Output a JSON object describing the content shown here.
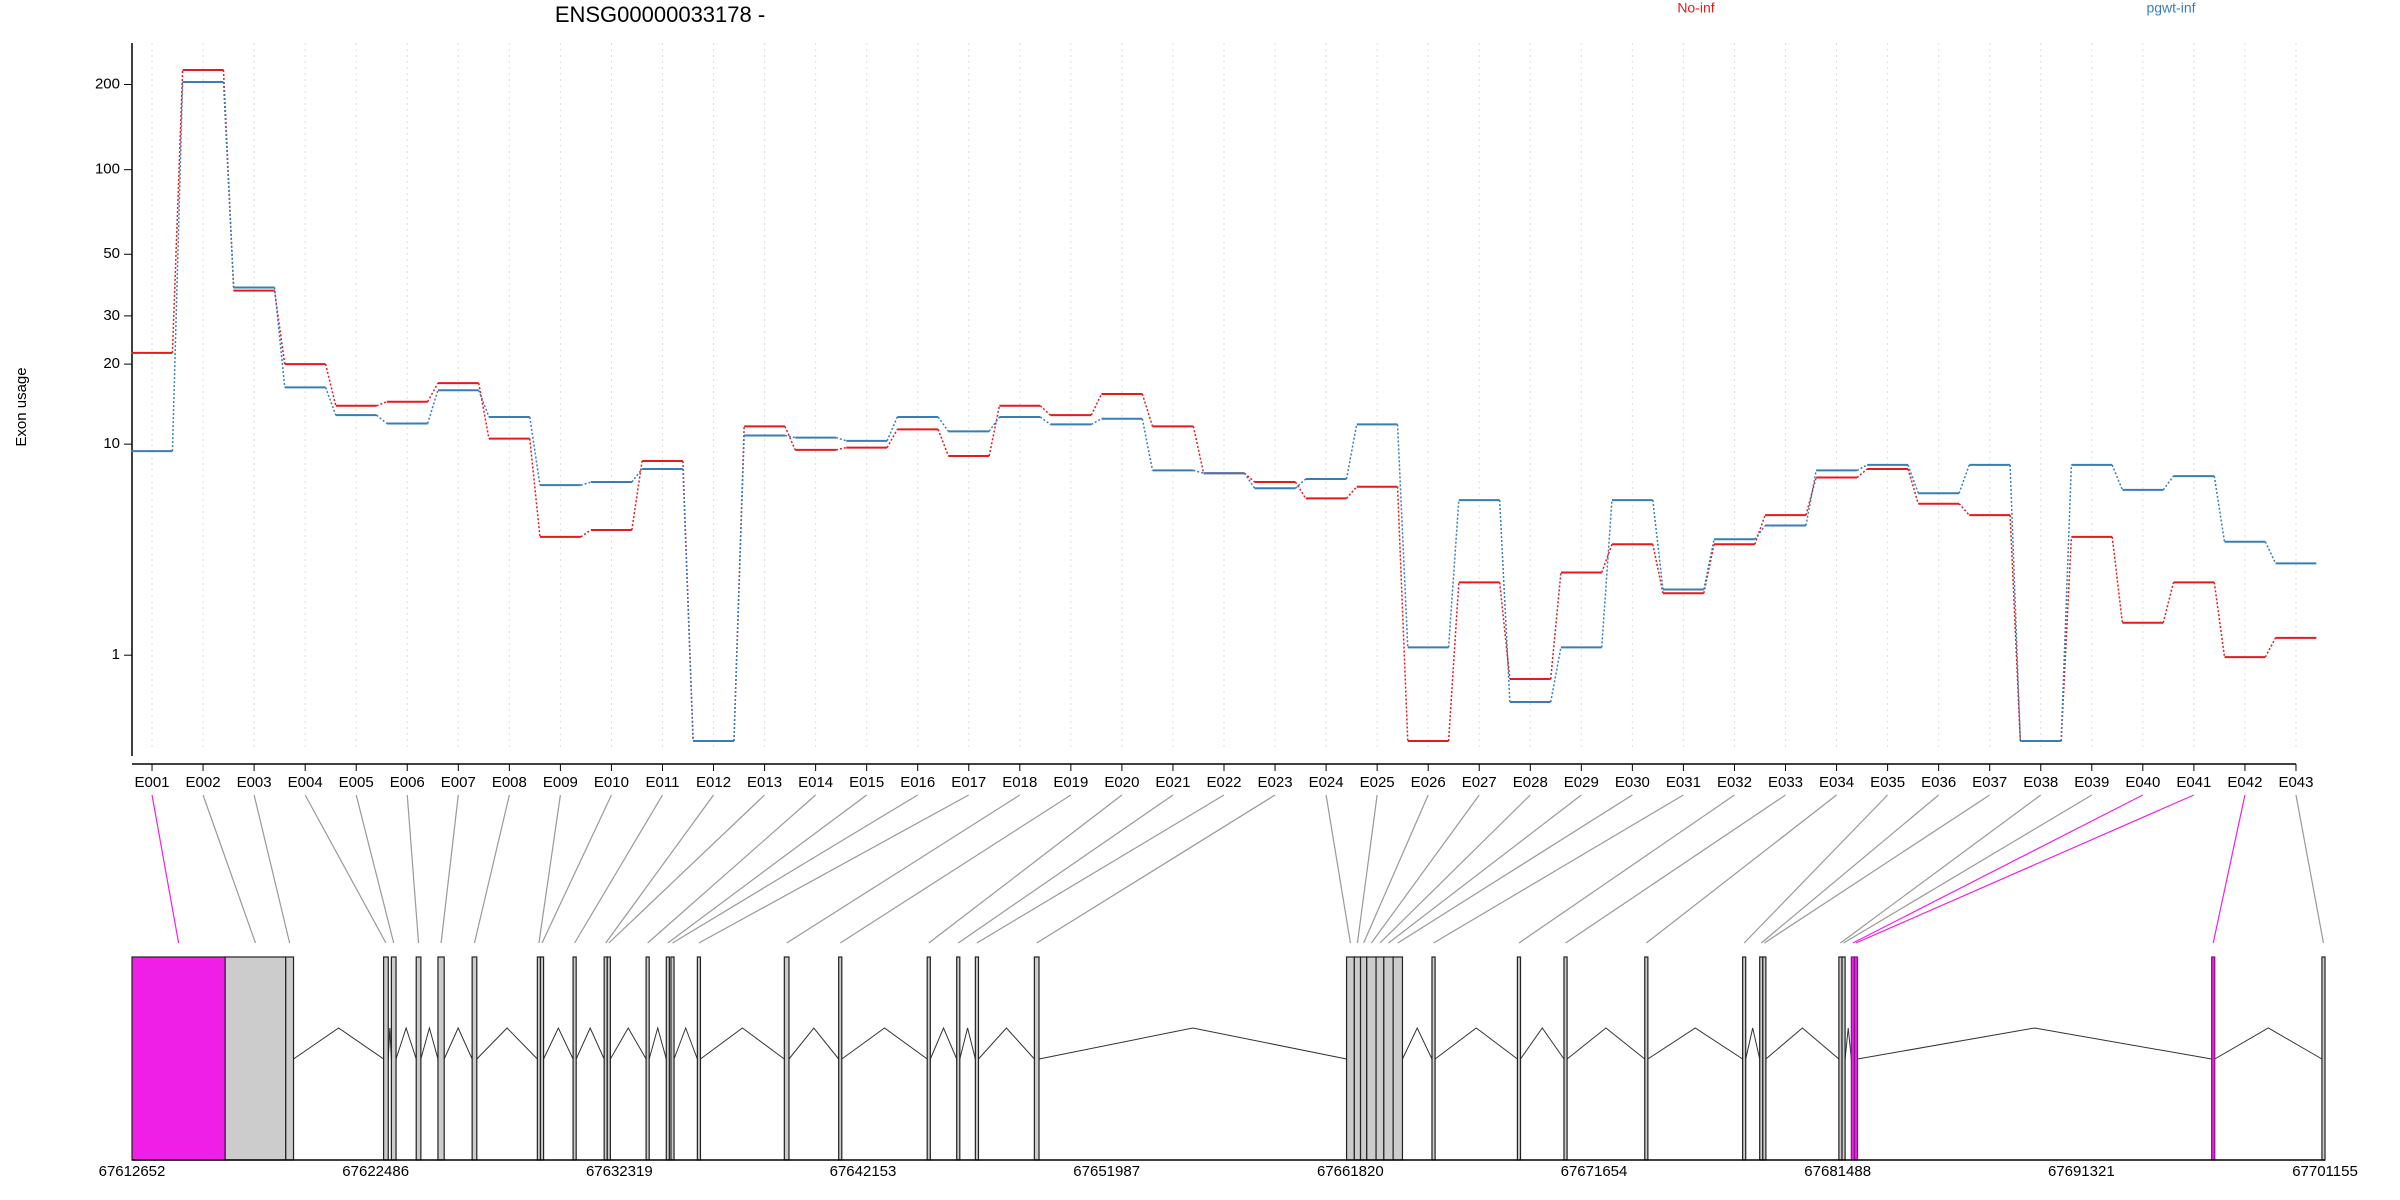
{
  "chart_data": {
    "type": "exon_usage",
    "title": "ENSG00000033178 -",
    "y_label": "Exon usage",
    "y_scale": "log10(x+1)",
    "grid": true,
    "categories": [
      "E001",
      "E002",
      "E003",
      "E004",
      "E005",
      "E006",
      "E007",
      "E008",
      "E009",
      "E010",
      "E011",
      "E012",
      "E013",
      "E014",
      "E015",
      "E016",
      "E017",
      "E018",
      "E019",
      "E020",
      "E021",
      "E022",
      "E023",
      "E024",
      "E025",
      "E026",
      "E027",
      "E028",
      "E029",
      "E030",
      "E031",
      "E032",
      "E033",
      "E034",
      "E035",
      "E036",
      "E037",
      "E038",
      "E039",
      "E040",
      "E041",
      "E042",
      "E043"
    ],
    "series": [
      {
        "name": "No-inf",
        "color": "#e41a1c",
        "values": [
          22,
          225,
          37,
          20,
          14,
          14.5,
          17,
          10.5,
          4.2,
          4.5,
          8.6,
          0,
          11.7,
          9.5,
          9.7,
          11.4,
          9,
          14,
          12.9,
          15.5,
          11.7,
          7.7,
          7.1,
          6.1,
          6.8,
          0,
          2.6,
          0.65,
          2.9,
          3.9,
          2.3,
          3.9,
          5.2,
          7.4,
          8,
          5.8,
          5.2,
          0,
          4.2,
          1.6,
          2.6,
          0.97,
          1.3
        ]
      },
      {
        "name": "pgwt-inf",
        "color": "#377eb8",
        "values": [
          9.4,
          204,
          38,
          16.4,
          12.9,
          12,
          16,
          12.7,
          6.9,
          7.1,
          8,
          0,
          10.8,
          10.6,
          10.3,
          12.7,
          11.2,
          12.7,
          11.9,
          12.5,
          7.9,
          7.7,
          6.7,
          7.3,
          11.9,
          1.13,
          6,
          0.37,
          1.13,
          6,
          2.4,
          4.1,
          4.7,
          7.9,
          8.3,
          6.4,
          8.3,
          0,
          8.3,
          6.6,
          7.5,
          4,
          3.2
        ]
      }
    ],
    "ylim": [
      0,
      280
    ],
    "yticks": [
      1,
      10,
      20,
      30,
      50,
      100,
      200
    ]
  },
  "gene_model": {
    "exon_color": "#cccccc",
    "significant_color": "#f01fe8",
    "xlim": [
      67612652,
      67701155
    ],
    "xticks": [
      67612652,
      67622486,
      67632319,
      67642153,
      67651987,
      67661820,
      67671654,
      67681488,
      67691321,
      67701155
    ],
    "exons": [
      {
        "start": 67612652,
        "end": 67616413,
        "significant": true
      },
      {
        "start": 67616413,
        "end": 67618857,
        "significant": false
      },
      {
        "start": 67618857,
        "end": 67619171,
        "significant": false
      },
      {
        "start": 67622806,
        "end": 67622994,
        "significant": false
      },
      {
        "start": 67623120,
        "end": 67623308,
        "significant": false
      },
      {
        "start": 67624122,
        "end": 67624310,
        "significant": false
      },
      {
        "start": 67625000,
        "end": 67625251,
        "significant": false
      },
      {
        "start": 67626379,
        "end": 67626567,
        "significant": false
      },
      {
        "start": 67629011,
        "end": 67629137,
        "significant": false
      },
      {
        "start": 67629137,
        "end": 67629262,
        "significant": false
      },
      {
        "start": 67630453,
        "end": 67630578,
        "significant": false
      },
      {
        "start": 67631707,
        "end": 67631832,
        "significant": false
      },
      {
        "start": 67631832,
        "end": 67631957,
        "significant": false
      },
      {
        "start": 67633399,
        "end": 67633524,
        "significant": false
      },
      {
        "start": 67634214,
        "end": 67634339,
        "significant": false
      },
      {
        "start": 67634402,
        "end": 67634527,
        "significant": false
      },
      {
        "start": 67635468,
        "end": 67635593,
        "significant": false
      },
      {
        "start": 67638978,
        "end": 67639166,
        "significant": false
      },
      {
        "start": 67641171,
        "end": 67641297,
        "significant": false
      },
      {
        "start": 67644744,
        "end": 67644870,
        "significant": false
      },
      {
        "start": 67645935,
        "end": 67646060,
        "significant": false
      },
      {
        "start": 67646687,
        "end": 67646813,
        "significant": false
      },
      {
        "start": 67649069,
        "end": 67649257,
        "significant": false
      },
      {
        "start": 67661668,
        "end": 67661981,
        "significant": false
      },
      {
        "start": 67661981,
        "end": 67662232,
        "significant": false
      },
      {
        "start": 67662232,
        "end": 67662483,
        "significant": false
      },
      {
        "start": 67662483,
        "end": 67662859,
        "significant": false
      },
      {
        "start": 67662859,
        "end": 67663172,
        "significant": false
      },
      {
        "start": 67663172,
        "end": 67663548,
        "significant": false
      },
      {
        "start": 67663548,
        "end": 67663924,
        "significant": false
      },
      {
        "start": 67665115,
        "end": 67665241,
        "significant": false
      },
      {
        "start": 67668563,
        "end": 67668688,
        "significant": false
      },
      {
        "start": 67670443,
        "end": 67670568,
        "significant": false
      },
      {
        "start": 67673702,
        "end": 67673828,
        "significant": false
      },
      {
        "start": 67677652,
        "end": 67677777,
        "significant": false
      },
      {
        "start": 67678341,
        "end": 67678466,
        "significant": false
      },
      {
        "start": 67678466,
        "end": 67678591,
        "significant": false
      },
      {
        "start": 67681537,
        "end": 67681663,
        "significant": false
      },
      {
        "start": 67681663,
        "end": 67681788,
        "significant": false
      },
      {
        "start": 67682039,
        "end": 67682164,
        "significant": true
      },
      {
        "start": 67682164,
        "end": 67682289,
        "significant": true
      },
      {
        "start": 67696580,
        "end": 67696706,
        "significant": true
      },
      {
        "start": 67701031,
        "end": 67701155,
        "significant": false
      }
    ]
  }
}
